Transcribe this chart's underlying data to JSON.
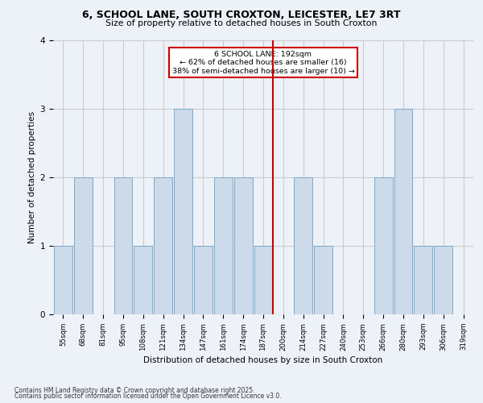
{
  "title": "6, SCHOOL LANE, SOUTH CROXTON, LEICESTER, LE7 3RT",
  "subtitle": "Size of property relative to detached houses in South Croxton",
  "xlabel": "Distribution of detached houses by size in South Croxton",
  "ylabel": "Number of detached properties",
  "bins": [
    "55sqm",
    "68sqm",
    "81sqm",
    "95sqm",
    "108sqm",
    "121sqm",
    "134sqm",
    "147sqm",
    "161sqm",
    "174sqm",
    "187sqm",
    "200sqm",
    "214sqm",
    "227sqm",
    "240sqm",
    "253sqm",
    "266sqm",
    "280sqm",
    "293sqm",
    "306sqm",
    "319sqm"
  ],
  "bar_heights": [
    1,
    2,
    0,
    2,
    1,
    2,
    3,
    1,
    2,
    2,
    1,
    0,
    2,
    1,
    0,
    0,
    2,
    3,
    1,
    1,
    0
  ],
  "bar_color": "#cddaea",
  "bar_edgecolor": "#7aaac8",
  "vline_x_index": 10.5,
  "vline_color": "#cc0000",
  "annotation_text": "6 SCHOOL LANE: 192sqm\n← 62% of detached houses are smaller (16)\n38% of semi-detached houses are larger (10) →",
  "annotation_box_edgecolor": "#cc0000",
  "annotation_box_facecolor": "#ffffff",
  "ylim": [
    0,
    4
  ],
  "yticks": [
    0,
    1,
    2,
    3,
    4
  ],
  "grid_color": "#cccccc",
  "background_color": "#edf2f9",
  "footer_line1": "Contains HM Land Registry data © Crown copyright and database right 2025.",
  "footer_line2": "Contains public sector information licensed under the Open Government Licence v3.0."
}
